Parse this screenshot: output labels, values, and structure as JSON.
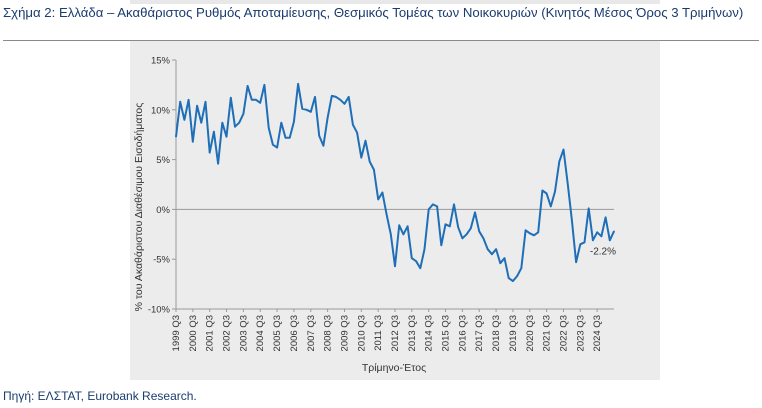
{
  "figure": {
    "title": "Σχήμα 2: Ελλάδα – Ακαθάριστος Ρυθμός Αποταμίευσης, Θεσμικός Τομέας των Νοικοκυριών (Κινητός Μέσος Όρος 3 Τριμήνων)",
    "source": "Πηγή: ΕΛΣΤΑΤ, Eurobank Research."
  },
  "colors": {
    "title": "#1a3c6e",
    "line": "#1f6fb8",
    "panel": "#ececec",
    "axis": "#9a9a9a"
  },
  "chart_data": {
    "type": "line",
    "xlabel": "Τρίμηνο-Έτος",
    "ylabel": "% του Ακαθάριστου Διαθέσιμου Εισοδήματος",
    "ylim": [
      -10,
      15
    ],
    "yticks": [
      -10,
      -5,
      0,
      5,
      10,
      15
    ],
    "ytick_labels": [
      "-10%",
      "-5%",
      "0%",
      "5%",
      "10%",
      "15%"
    ],
    "xtick_labels": [
      "1999 Q3",
      "2000 Q3",
      "2001 Q3",
      "2002 Q3",
      "2003 Q3",
      "2004 Q3",
      "2005 Q3",
      "2006 Q3",
      "2007 Q3",
      "2008 Q3",
      "2009 Q3",
      "2010 Q3",
      "2011 Q3",
      "2012 Q3",
      "2013 Q3",
      "2014 Q3",
      "2015 Q3",
      "2016 Q3",
      "2017 Q3",
      "2018 Q3",
      "2019 Q3",
      "2020 Q3",
      "2021 Q3",
      "2022 Q3",
      "2023 Q3",
      "2024 Q3"
    ],
    "grid": false,
    "annotation": {
      "text": "-2.2%",
      "value": -2.2,
      "at": "last point"
    },
    "series": [
      {
        "values": [
          7.3,
          10.8,
          9.0,
          11.0,
          6.8,
          10.4,
          8.7,
          10.8,
          5.7,
          7.8,
          4.6,
          8.7,
          7.3,
          11.2,
          8.3,
          8.7,
          9.6,
          12.4,
          11.0,
          11.0,
          10.7,
          12.5,
          8.2,
          6.5,
          6.2,
          8.7,
          7.2,
          7.2,
          8.8,
          12.6,
          10.1,
          10.0,
          9.8,
          11.3,
          7.4,
          6.4,
          9.2,
          11.4,
          11.3,
          11.0,
          10.6,
          11.3,
          8.5,
          7.7,
          5.2,
          6.9,
          4.8,
          4.0,
          1.0,
          1.7,
          -0.5,
          -2.5,
          -5.7,
          -1.6,
          -2.5,
          -1.7,
          -4.9,
          -5.2,
          -5.9,
          -4.0,
          0.0,
          0.5,
          0.3,
          -3.6,
          -1.5,
          -1.7,
          0.5,
          -1.8,
          -2.9,
          -2.5,
          -1.9,
          -0.3,
          -2.2,
          -2.9,
          -4.0,
          -4.5,
          -4.0,
          -5.4,
          -4.9,
          -6.9,
          -7.2,
          -6.7,
          -5.9,
          -2.1,
          -2.4,
          -2.6,
          -2.3,
          1.9,
          1.6,
          0.3,
          1.8,
          4.8,
          6.0,
          2.6,
          -1.1,
          -5.3,
          -3.5,
          -3.3,
          0.1,
          -3.1,
          -2.3,
          -2.7,
          -0.8,
          -3.1,
          -2.2
        ]
      }
    ]
  }
}
